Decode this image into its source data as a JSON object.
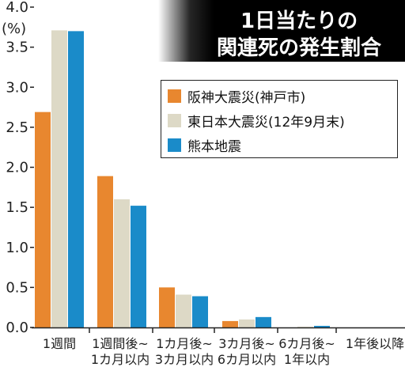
{
  "title_lines": [
    "1日当たりの",
    "関連死の発生割合"
  ],
  "colors": {
    "hanshin": "#e8872f",
    "higashi": "#ddd9c6",
    "kumamoto": "#1a8bc9",
    "axis": "#222222",
    "title_bg": "#000000"
  },
  "chart_data": {
    "type": "bar",
    "ylabel": "(%)",
    "ylim": [
      0,
      4.0
    ],
    "yticks": [
      "0.0",
      "0.5",
      "1.0",
      "1.5",
      "2.0",
      "2.5",
      "3.0",
      "3.5",
      "4.0"
    ],
    "grid": false,
    "legend_position": "upper-right",
    "categories": [
      {
        "line1": "1週間",
        "line2": ""
      },
      {
        "line1": "1週間後~",
        "line2": "1カ月以内"
      },
      {
        "line1": "1カ月後~",
        "line2": "3カ月以内"
      },
      {
        "line1": "3カ月後~",
        "line2": "6カ月以内"
      },
      {
        "line1": "6カ月後~",
        "line2": "1年以内"
      },
      {
        "line1": "1年後以降",
        "line2": ""
      }
    ],
    "series": [
      {
        "name": "阪神大震災(神戸市)",
        "color_key": "hanshin",
        "values": [
          2.69,
          1.89,
          0.5,
          0.08,
          0.0,
          0.0
        ]
      },
      {
        "name": "東日本大震災(12年9月末)",
        "color_key": "higashi",
        "values": [
          3.71,
          1.6,
          0.41,
          0.1,
          0.01,
          0.0
        ]
      },
      {
        "name": "熊本地震",
        "color_key": "kumamoto",
        "values": [
          3.7,
          1.52,
          0.39,
          0.13,
          0.02,
          0.0
        ]
      }
    ]
  }
}
